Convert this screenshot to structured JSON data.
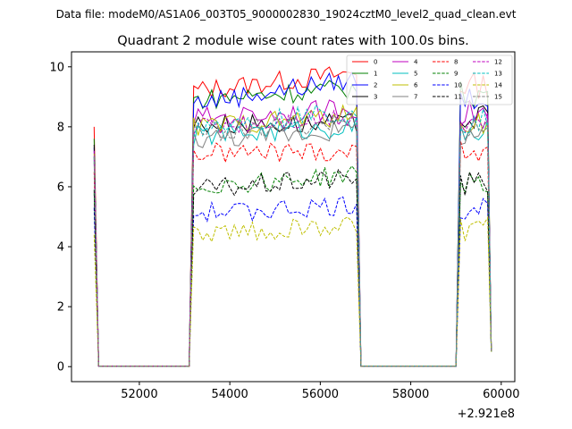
{
  "figure": {
    "suptitle": "Data file: modeM0/AS1A06_003T05_9000002830_19024cztM0_level2_quad_clean.evt"
  },
  "chart_data": {
    "type": "line",
    "title": "Quadrant 2 module wise count rates with 100.0s bins.",
    "xlabel": "",
    "ylabel": "",
    "offset_text": "+2.921e8",
    "x_offset": 292100000,
    "xlim": [
      50500,
      60300
    ],
    "ylim": [
      -0.5,
      10.5
    ],
    "x_ticks": [
      52000,
      54000,
      56000,
      58000,
      60000
    ],
    "x_tick_labels": [
      "52000",
      "54000",
      "56000",
      "58000",
      "60000"
    ],
    "y_ticks": [
      0,
      2,
      4,
      6,
      8,
      10
    ],
    "y_tick_labels": [
      "0",
      "2",
      "4",
      "6",
      "8",
      "10"
    ],
    "grid": false,
    "legend_position": "top-right",
    "legend_columns": 4,
    "segments": [
      {
        "x_start": 51000,
        "x_end": 51100,
        "level": 0.0
      },
      {
        "x_start": 51100,
        "x_end": 53100,
        "level": 0.0
      },
      {
        "x_start": 53150,
        "x_end": 56800,
        "level": 1.0
      },
      {
        "x_start": 56900,
        "x_end": 59000,
        "level": 0.0
      },
      {
        "x_start": 59050,
        "x_end": 59800,
        "level": 1.0
      }
    ],
    "series": [
      {
        "name": "0",
        "color": "#ff0000",
        "dash": "solid",
        "high": 9.2,
        "high_end": 9.8,
        "spike": 8.0,
        "tail": 0.5
      },
      {
        "name": "1",
        "color": "#008000",
        "dash": "solid",
        "high": 8.9,
        "high_end": 9.3,
        "spike": 7.6,
        "tail": 0.5
      },
      {
        "name": "2",
        "color": "#0000ff",
        "dash": "solid",
        "high": 8.8,
        "high_end": 9.6,
        "spike": 7.3,
        "tail": 0.5
      },
      {
        "name": "3",
        "color": "#000000",
        "dash": "solid",
        "high": 8.1,
        "high_end": 8.1,
        "spike": 7.4,
        "tail": 0.5
      },
      {
        "name": "4",
        "color": "#bf00bf",
        "dash": "solid",
        "high": 8.3,
        "high_end": 8.6,
        "spike": 7.0,
        "tail": 0.5
      },
      {
        "name": "5",
        "color": "#00bfbf",
        "dash": "solid",
        "high": 7.7,
        "high_end": 8.0,
        "spike": 6.9,
        "tail": 0.5
      },
      {
        "name": "6",
        "color": "#bfbf00",
        "dash": "solid",
        "high": 8.0,
        "high_end": 8.4,
        "spike": 7.1,
        "tail": 0.5
      },
      {
        "name": "7",
        "color": "#808080",
        "dash": "solid",
        "high": 7.6,
        "high_end": 7.9,
        "spike": 6.8,
        "tail": 0.5
      },
      {
        "name": "8",
        "color": "#ff0000",
        "dash": "dashed",
        "high": 7.1,
        "high_end": 7.2,
        "spike": 6.5,
        "tail": 0.5
      },
      {
        "name": "9",
        "color": "#008000",
        "dash": "dashed",
        "high": 6.0,
        "high_end": 6.4,
        "spike": 5.8,
        "tail": 0.5
      },
      {
        "name": "10",
        "color": "#0000ff",
        "dash": "dashed",
        "high": 5.1,
        "high_end": 5.4,
        "spike": 5.3,
        "tail": 0.5
      },
      {
        "name": "11",
        "color": "#000000",
        "dash": "dashed",
        "high": 5.9,
        "high_end": 6.3,
        "spike": 5.9,
        "tail": 0.5
      },
      {
        "name": "12",
        "color": "#bf00bf",
        "dash": "dashed",
        "high": 8.0,
        "high_end": 8.4,
        "spike": 7.2,
        "tail": 0.5
      },
      {
        "name": "13",
        "color": "#00bfbf",
        "dash": "dashed",
        "high": 8.0,
        "high_end": 8.5,
        "spike": 7.0,
        "tail": 0.5
      },
      {
        "name": "14",
        "color": "#bfbf00",
        "dash": "dashed",
        "high": 4.4,
        "high_end": 4.7,
        "spike": 4.4,
        "tail": 0.5
      },
      {
        "name": "15",
        "color": "#808080",
        "dash": "dashed",
        "high": 7.8,
        "high_end": 8.2,
        "spike": 7.0,
        "tail": 0.5
      }
    ]
  }
}
